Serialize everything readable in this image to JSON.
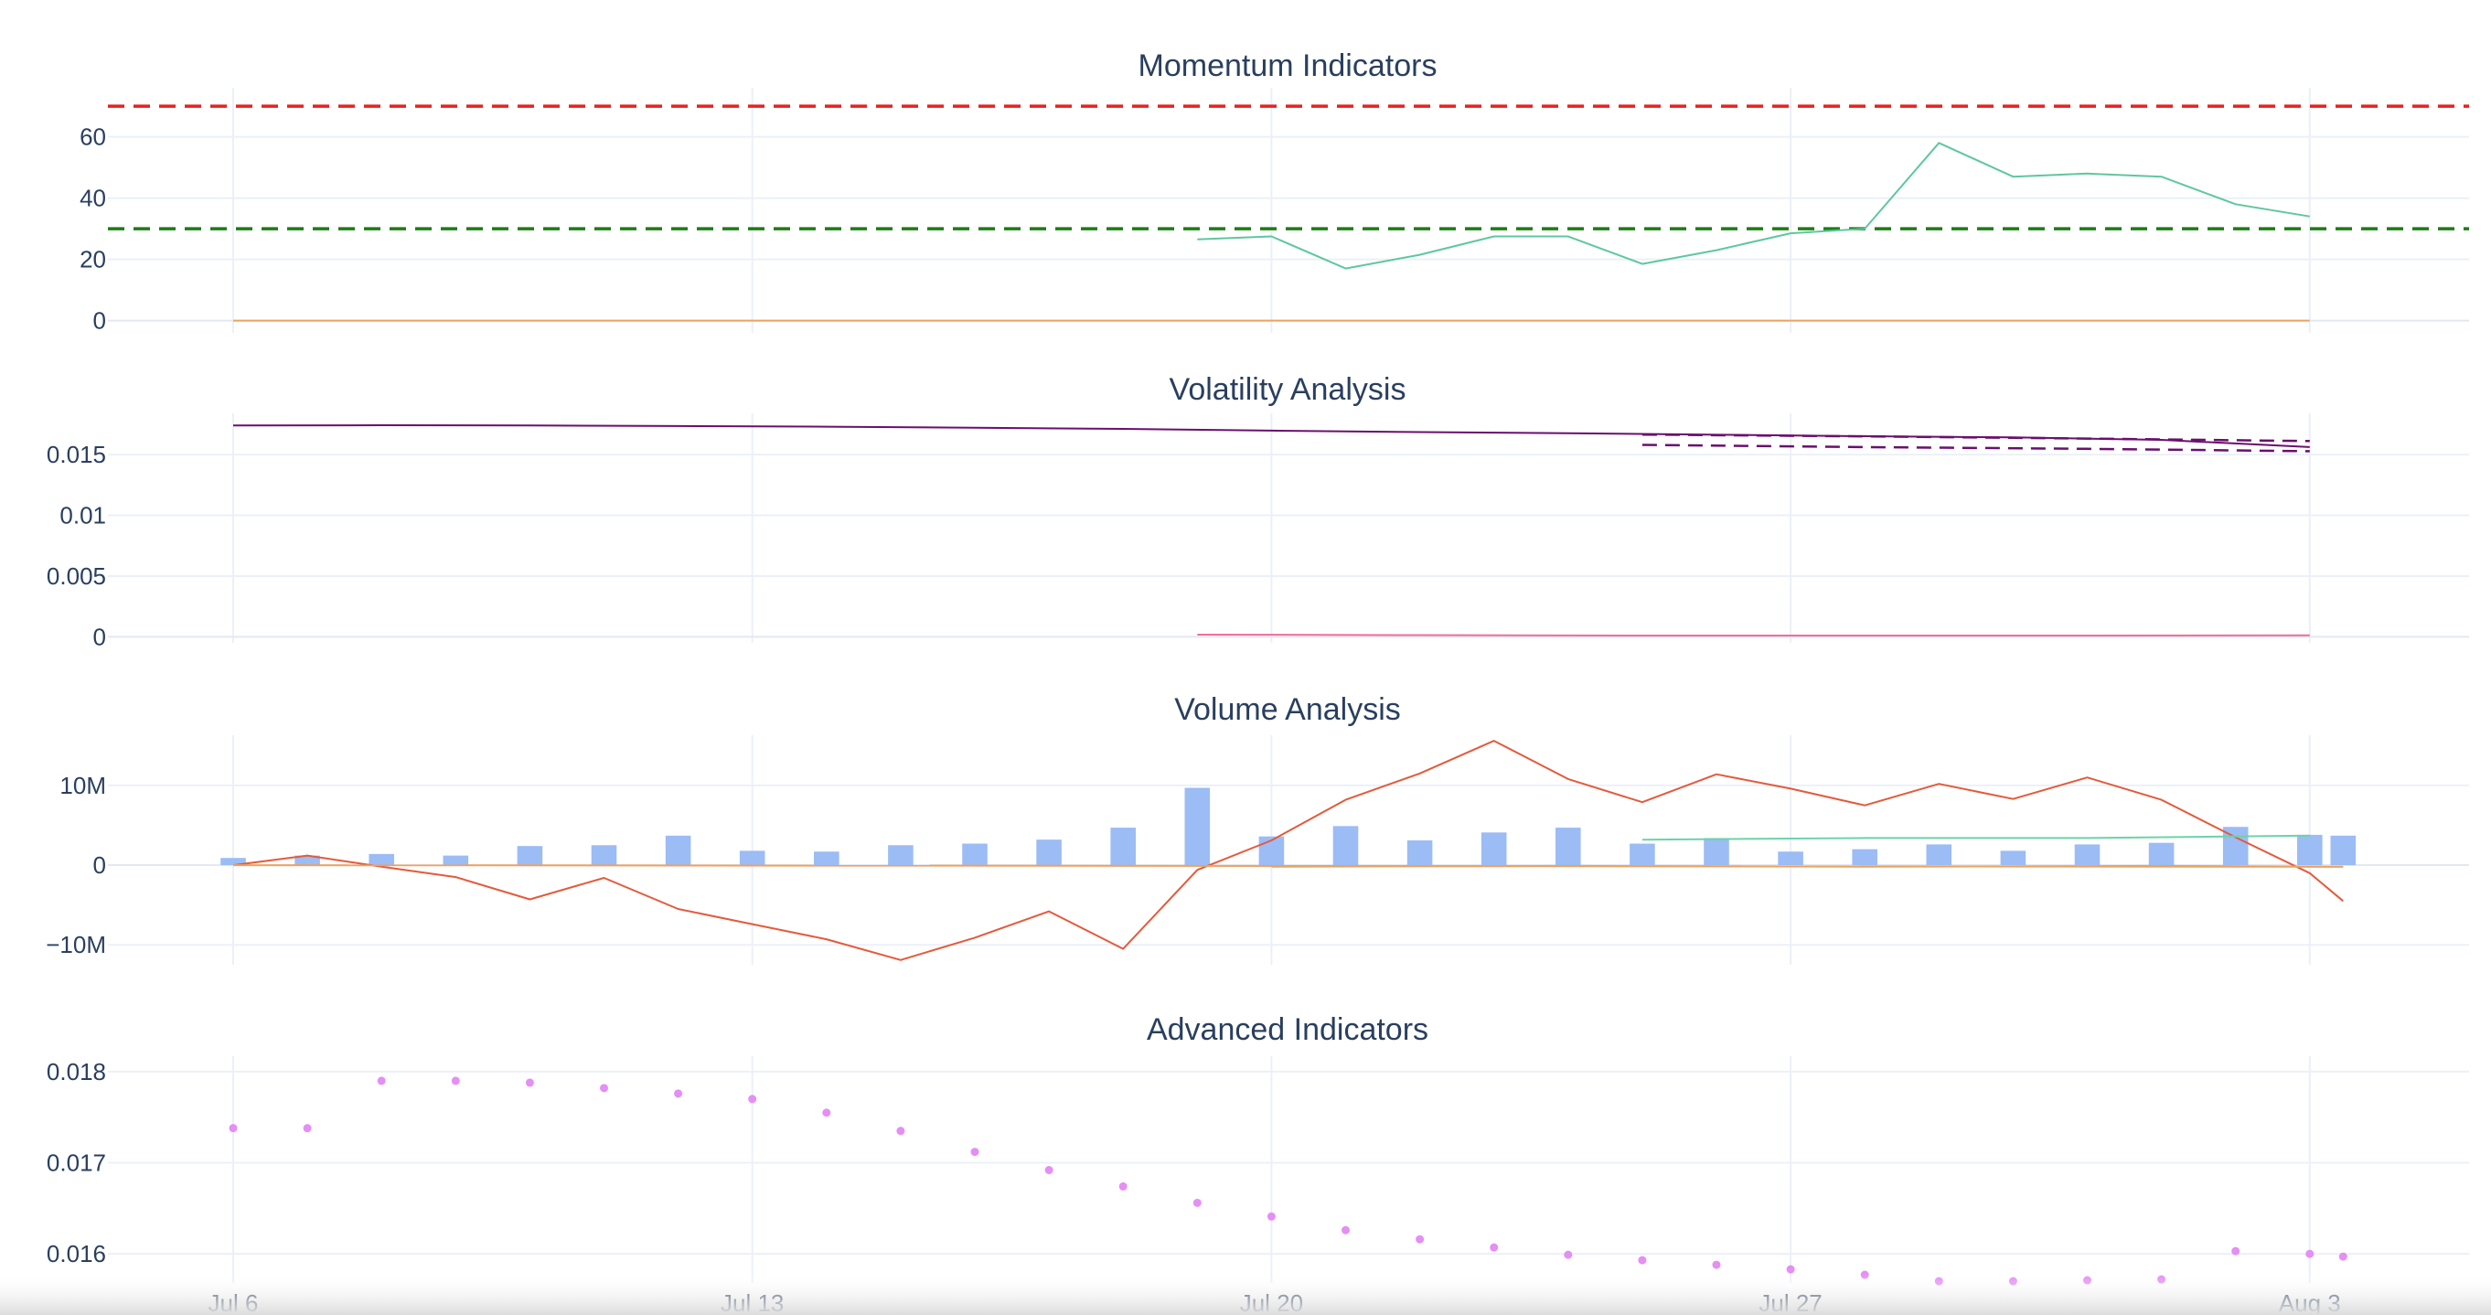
{
  "colors": {
    "grid": "#ebf0f8",
    "zeroline": "#e3e8f0",
    "text": "#2a3f5f",
    "overbought": "#e8211c",
    "oversold": "#1a7d11",
    "rsi": "#5ec79e",
    "zero_ref": "#f0a15d",
    "volatility": "#6a0f6e",
    "atr": "#ee6f9a",
    "volume_bars": "#9bbcf5",
    "obv": "#e45a3b",
    "volume_ma": "#6cd3a8",
    "volume_osc": "#f0a15d",
    "advanced": "#e58ef5"
  },
  "chart_data": [
    {
      "type": "line",
      "title": "Momentum Indicators",
      "ylim": [
        -4,
        76
      ],
      "yticks": [
        0,
        20,
        40,
        60
      ],
      "ytick_labels": [
        "0",
        "20",
        "40",
        "60"
      ],
      "reference_lines": [
        {
          "y": 70,
          "style": "dashed",
          "color_key": "overbought"
        },
        {
          "y": 30,
          "style": "dashed",
          "color_key": "oversold"
        }
      ],
      "series": [
        {
          "color_key": "rsi",
          "style": "solid",
          "x": [
            13,
            14,
            15,
            16,
            17,
            18,
            19,
            20,
            21,
            22,
            23,
            24,
            25,
            26,
            27,
            28
          ],
          "values": [
            26.5,
            27.5,
            17,
            21.5,
            27.5,
            27.5,
            18.5,
            23,
            28.5,
            30,
            58,
            47,
            48,
            47,
            38,
            34
          ]
        },
        {
          "color_key": "zero_ref",
          "style": "solid",
          "x": [
            0,
            28
          ],
          "values": [
            0,
            0
          ]
        }
      ]
    },
    {
      "type": "line",
      "title": "Volatility Analysis",
      "ylim": [
        -0.0005,
        0.0184
      ],
      "yticks": [
        0,
        0.005,
        0.01,
        0.015
      ],
      "ytick_labels": [
        "0",
        "0.005",
        "0.01",
        "0.015"
      ],
      "series": [
        {
          "color_key": "volatility",
          "style": "solid",
          "x": [
            0,
            2,
            4,
            6,
            8,
            10,
            12,
            14,
            16,
            18,
            20,
            22,
            24,
            26,
            28
          ],
          "values": [
            0.0174,
            0.01742,
            0.0174,
            0.01735,
            0.0173,
            0.01722,
            0.01712,
            0.01698,
            0.01686,
            0.01676,
            0.01664,
            0.01652,
            0.01642,
            0.01622,
            0.01562
          ]
        },
        {
          "color_key": "volatility",
          "style": "dashed",
          "x": [
            19,
            22,
            25,
            28
          ],
          "values": [
            0.01665,
            0.0165,
            0.01632,
            0.01612
          ]
        },
        {
          "color_key": "volatility",
          "style": "dashed",
          "x": [
            19,
            22,
            25,
            28
          ],
          "values": [
            0.0158,
            0.01562,
            0.01548,
            0.01528
          ]
        },
        {
          "color_key": "atr",
          "style": "solid",
          "x": [
            13,
            16,
            19,
            22,
            25,
            28
          ],
          "values": [
            0.00018,
            0.00014,
            0.0001,
            0.0001,
            0.0001,
            0.00012
          ]
        }
      ]
    },
    {
      "type": "bar",
      "title": "Volume Analysis",
      "ylim": [
        -12500000,
        16300000
      ],
      "yticks": [
        -10000000,
        0,
        10000000
      ],
      "ytick_labels": [
        "−10M",
        "0",
        "10M"
      ],
      "bar_width_days": 0.34,
      "bars": {
        "color_key": "volume_bars",
        "x": [
          0,
          1,
          2,
          3,
          4,
          5,
          6,
          7,
          8,
          9,
          10,
          11,
          12,
          13,
          14,
          15,
          16,
          17,
          18,
          19,
          20,
          21,
          22,
          23,
          24,
          25,
          26,
          27,
          28,
          28.45
        ],
        "values": [
          900000,
          1200000,
          1400000,
          1200000,
          2400000,
          2500000,
          3700000,
          1800000,
          1700000,
          2500000,
          2700000,
          3200000,
          4700000,
          9700000,
          3600000,
          4900000,
          3100000,
          4100000,
          4700000,
          2700000,
          3400000,
          1700000,
          2000000,
          2600000,
          1800000,
          2600000,
          2800000,
          4800000,
          3800000,
          3700000
        ]
      },
      "series": [
        {
          "color_key": "obv",
          "style": "solid",
          "x": [
            0,
            1,
            2,
            3,
            4,
            5,
            6,
            7,
            8,
            9,
            10,
            11,
            12,
            13,
            14,
            15,
            16,
            17,
            18,
            19,
            20,
            21,
            22,
            23,
            24,
            25,
            26,
            27,
            28,
            28.45
          ],
          "values": [
            0,
            1200000,
            -200000,
            -1500000,
            -4300000,
            -1600000,
            -5500000,
            -7400000,
            -9300000,
            -11900000,
            -9100000,
            -5800000,
            -10500000,
            -600000,
            3100000,
            8200000,
            11500000,
            15600000,
            10800000,
            7900000,
            11400000,
            9600000,
            7500000,
            10200000,
            8300000,
            11000000,
            8200000,
            3500000,
            -1000000,
            -4500000
          ]
        },
        {
          "color_key": "volume_ma",
          "style": "solid",
          "x": [
            19,
            22,
            25,
            28
          ],
          "values": [
            3200000,
            3400000,
            3400000,
            3700000
          ]
        },
        {
          "color_key": "volume_ma",
          "style": "solid",
          "x": [
            14,
            18,
            22,
            26,
            28.45
          ],
          "values": [
            -200000,
            -100000,
            -200000,
            -100000,
            -200000
          ]
        },
        {
          "color_key": "volume_osc",
          "style": "solid",
          "x": [
            0,
            28.45
          ],
          "values": [
            0,
            -200000
          ]
        }
      ]
    },
    {
      "type": "scatter",
      "title": "Advanced Indicators",
      "ylim": [
        0.01568,
        0.01817
      ],
      "yticks": [
        0.016,
        0.017,
        0.018
      ],
      "ytick_labels": [
        "0.016",
        "0.017",
        "0.018"
      ],
      "series": [
        {
          "color_key": "advanced",
          "x": [
            0,
            1,
            2,
            3,
            4,
            5,
            6,
            7,
            8,
            9,
            10,
            11,
            12,
            13,
            14,
            15,
            16,
            17,
            18,
            19,
            20,
            21,
            22,
            23,
            24,
            25,
            26,
            27,
            28,
            28.45
          ],
          "values": [
            0.01738,
            0.01738,
            0.0179,
            0.0179,
            0.01788,
            0.01782,
            0.01776,
            0.0177,
            0.01755,
            0.01735,
            0.01712,
            0.01692,
            0.01674,
            0.01656,
            0.01641,
            0.01626,
            0.01616,
            0.01607,
            0.01599,
            0.01593,
            0.01588,
            0.01583,
            0.01577,
            0.0157,
            0.0157,
            0.01571,
            0.01572,
            0.01603,
            0.016,
            0.01597
          ]
        }
      ]
    }
  ],
  "x_axis": {
    "ticks": [
      0,
      7,
      14,
      21,
      28
    ],
    "tick_labels": [
      "Jul 6",
      "Jul 13",
      "Jul 20",
      "Jul 27",
      "Aug 3"
    ]
  }
}
